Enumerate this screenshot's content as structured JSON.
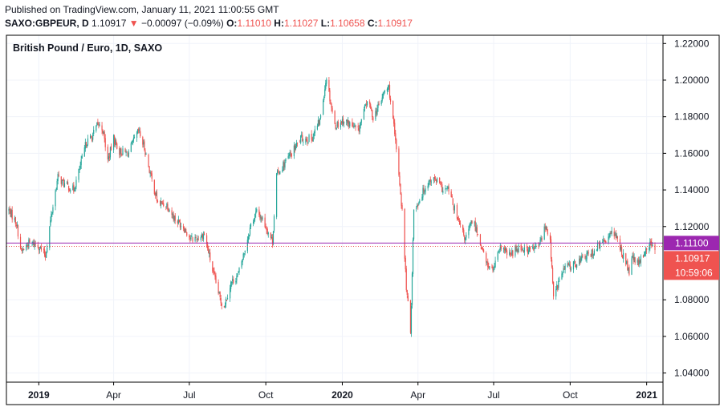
{
  "header": {
    "published": "Published on TradingView.com, January 11, 2021 11:00:55 GMT",
    "symbol": "SAXO:GBPEUR, D",
    "last": "1.10917",
    "arrow": "▼",
    "change": "−0.00097 (−0.09%)",
    "o_label": "O:",
    "o_value": "1.11010",
    "h_label": "H:",
    "h_value": "1.11027",
    "l_label": "L:",
    "l_value": "1.10658",
    "c_label": "C:",
    "c_value": "1.10917"
  },
  "colors": {
    "up": "#26a69a",
    "down": "#ef5350",
    "hline": "#9c27b0",
    "price_tag": "#ef5350",
    "hline_tag": "#9c27b0"
  },
  "chart_data": {
    "type": "candlestick",
    "title": "British Pound / Euro, 1D, SAXO",
    "ylim": [
      1.035,
      1.2245
    ],
    "y_ticks": [
      "1.22000",
      "1.20000",
      "1.18000",
      "1.16000",
      "1.14000",
      "1.12000",
      "1.08000",
      "1.06000",
      "1.04000"
    ],
    "x_ticks": [
      {
        "label": "2019",
        "date": "2019-01-01",
        "bold": true
      },
      {
        "label": "Apr",
        "date": "2019-04-01",
        "bold": false
      },
      {
        "label": "Jul",
        "date": "2019-07-01",
        "bold": false
      },
      {
        "label": "Oct",
        "date": "2019-10-01",
        "bold": false
      },
      {
        "label": "2020",
        "date": "2020-01-01",
        "bold": true
      },
      {
        "label": "Apr",
        "date": "2020-04-01",
        "bold": false
      },
      {
        "label": "Jul",
        "date": "2020-07-01",
        "bold": false
      },
      {
        "label": "Oct",
        "date": "2020-10-01",
        "bold": false
      },
      {
        "label": "2021",
        "date": "2021-01-01",
        "bold": true
      }
    ],
    "x_start": "2018-11-25",
    "x_end": "2021-01-11",
    "horizontal_line": {
      "value": 1.111,
      "label": "1.11100"
    },
    "last_price": {
      "value": 1.10917,
      "label": "1.10917",
      "countdown": "10:59:06"
    },
    "grid": true,
    "close_path": [
      [
        "2018-11-26",
        1.129
      ],
      [
        "2018-12-05",
        1.122
      ],
      [
        "2018-12-11",
        1.106
      ],
      [
        "2018-12-20",
        1.111
      ],
      [
        "2018-12-31",
        1.11
      ],
      [
        "2019-01-09",
        1.104
      ],
      [
        "2019-01-16",
        1.126
      ],
      [
        "2019-01-24",
        1.147
      ],
      [
        "2019-02-01",
        1.143
      ],
      [
        "2019-02-12",
        1.14
      ],
      [
        "2019-02-20",
        1.153
      ],
      [
        "2019-02-27",
        1.166
      ],
      [
        "2019-03-06",
        1.169
      ],
      [
        "2019-03-13",
        1.176
      ],
      [
        "2019-03-19",
        1.173
      ],
      [
        "2019-03-25",
        1.156
      ],
      [
        "2019-04-01",
        1.168
      ],
      [
        "2019-04-08",
        1.161
      ],
      [
        "2019-04-18",
        1.16
      ],
      [
        "2019-05-01",
        1.172
      ],
      [
        "2019-05-08",
        1.163
      ],
      [
        "2019-05-16",
        1.147
      ],
      [
        "2019-05-24",
        1.133
      ],
      [
        "2019-06-04",
        1.132
      ],
      [
        "2019-06-14",
        1.124
      ],
      [
        "2019-06-24",
        1.12
      ],
      [
        "2019-07-03",
        1.113
      ],
      [
        "2019-07-12",
        1.114
      ],
      [
        "2019-07-19",
        1.116
      ],
      [
        "2019-07-30",
        1.094
      ],
      [
        "2019-08-08",
        1.079
      ],
      [
        "2019-08-12",
        1.077
      ],
      [
        "2019-08-20",
        1.089
      ],
      [
        "2019-08-29",
        1.094
      ],
      [
        "2019-09-05",
        1.106
      ],
      [
        "2019-09-13",
        1.121
      ],
      [
        "2019-09-20",
        1.128
      ],
      [
        "2019-09-27",
        1.124
      ],
      [
        "2019-10-04",
        1.117
      ],
      [
        "2019-10-09",
        1.112
      ],
      [
        "2019-10-14",
        1.148
      ],
      [
        "2019-10-21",
        1.153
      ],
      [
        "2019-11-01",
        1.16
      ],
      [
        "2019-11-12",
        1.168
      ],
      [
        "2019-11-25",
        1.168
      ],
      [
        "2019-12-05",
        1.178
      ],
      [
        "2019-12-13",
        1.202
      ],
      [
        "2019-12-16",
        1.193
      ],
      [
        "2019-12-23",
        1.175
      ],
      [
        "2020-01-02",
        1.178
      ],
      [
        "2020-01-10",
        1.176
      ],
      [
        "2020-01-20",
        1.172
      ],
      [
        "2020-01-31",
        1.189
      ],
      [
        "2020-02-07",
        1.18
      ],
      [
        "2020-02-14",
        1.186
      ],
      [
        "2020-02-21",
        1.194
      ],
      [
        "2020-02-26",
        1.196
      ],
      [
        "2020-03-03",
        1.174
      ],
      [
        "2020-03-09",
        1.149
      ],
      [
        "2020-03-13",
        1.128
      ],
      [
        "2020-03-18",
        1.087
      ],
      [
        "2020-03-23",
        1.062
      ],
      [
        "2020-03-27",
        1.129
      ],
      [
        "2020-04-01",
        1.133
      ],
      [
        "2020-04-09",
        1.141
      ],
      [
        "2020-04-16",
        1.146
      ],
      [
        "2020-04-24",
        1.145
      ],
      [
        "2020-05-01",
        1.14
      ],
      [
        "2020-05-08",
        1.14
      ],
      [
        "2020-05-19",
        1.123
      ],
      [
        "2020-05-28",
        1.113
      ],
      [
        "2020-06-05",
        1.123
      ],
      [
        "2020-06-10",
        1.119
      ],
      [
        "2020-06-22",
        1.1
      ],
      [
        "2020-06-30",
        1.096
      ],
      [
        "2020-07-10",
        1.109
      ],
      [
        "2020-07-20",
        1.104
      ],
      [
        "2020-07-31",
        1.109
      ],
      [
        "2020-08-11",
        1.107
      ],
      [
        "2020-08-24",
        1.109
      ],
      [
        "2020-09-01",
        1.12
      ],
      [
        "2020-09-07",
        1.112
      ],
      [
        "2020-09-11",
        1.081
      ],
      [
        "2020-09-18",
        1.091
      ],
      [
        "2020-09-25",
        1.098
      ],
      [
        "2020-10-05",
        1.099
      ],
      [
        "2020-10-16",
        1.103
      ],
      [
        "2020-10-26",
        1.105
      ],
      [
        "2020-11-05",
        1.11
      ],
      [
        "2020-11-13",
        1.112
      ],
      [
        "2020-11-20",
        1.119
      ],
      [
        "2020-11-27",
        1.112
      ],
      [
        "2020-12-04",
        1.104
      ],
      [
        "2020-12-11",
        1.095
      ],
      [
        "2020-12-15",
        1.103
      ],
      [
        "2020-12-22",
        1.099
      ],
      [
        "2020-12-29",
        1.106
      ],
      [
        "2021-01-04",
        1.11
      ],
      [
        "2021-01-11",
        1.109
      ]
    ]
  }
}
